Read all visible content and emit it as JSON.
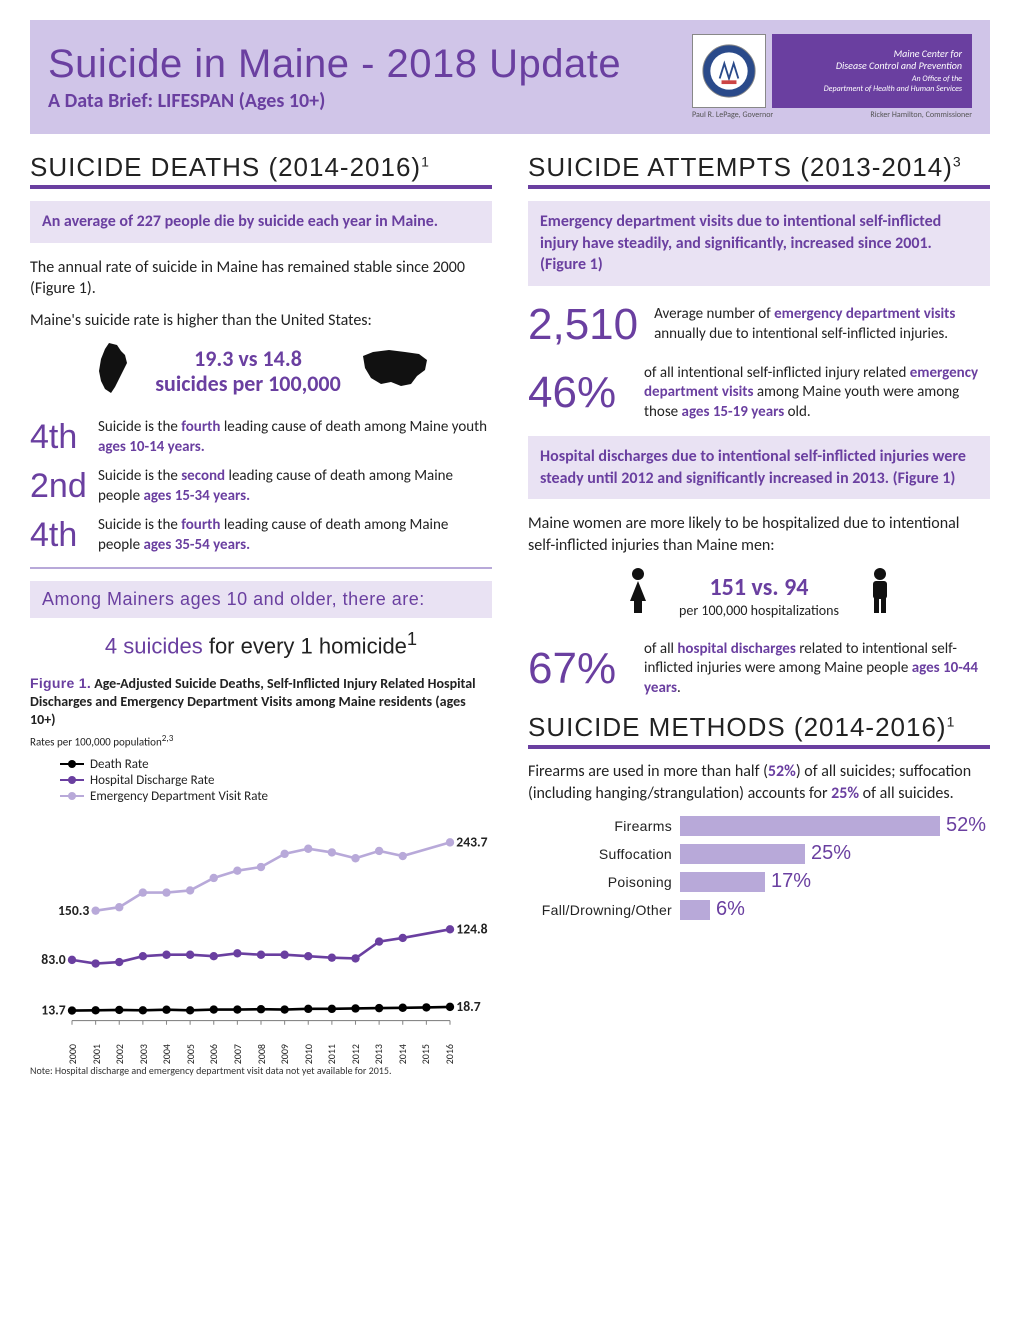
{
  "header": {
    "title": "Suicide in Maine - 2018 Update",
    "subtitle": "A Data Brief: LIFESPAN  (Ages 10+)",
    "org1": "Maine Center for",
    "org2": "Disease Control and Prevention",
    "org3": "An Office of the",
    "org4": "Department of Health and Human Services",
    "caption_left": "Paul R. LePage, Governor",
    "caption_right": "Ricker Hamilton, Commissioner"
  },
  "deaths": {
    "heading": "SUICIDE DEATHS (2014-2016)",
    "sup": "1",
    "callout": "An average of 227 people die by suicide each year in Maine.",
    "para1": "The annual rate of suicide in Maine has remained stable since 2000 (Figure 1).",
    "para2": "Maine's suicide rate is higher than the United States:",
    "rate_line1": "19.3 vs 14.8",
    "rate_line2": "suicides per 100,000",
    "ranks": [
      {
        "num": "4th",
        "text_a": "Suicide is the ",
        "bold1": "fourth",
        "text_b": " leading cause of death among Maine youth ",
        "bold2": "ages 10-14 years."
      },
      {
        "num": "2nd",
        "text_a": "Suicide is the ",
        "bold1": "second",
        "text_b": " leading cause of death among Maine people ",
        "bold2": "ages 15-34 years."
      },
      {
        "num": "4th",
        "text_a": "Suicide is the ",
        "bold1": "fourth",
        "text_b": " leading cause of death among Maine people ",
        "bold2": "ages 35-54 years."
      }
    ],
    "among": "Among Mainers ages 10 and older, there are:",
    "ratio_a": "4 suicides",
    "ratio_b": " for every ",
    "ratio_c": "1 homicide",
    "ratio_sup": "1"
  },
  "figure": {
    "label": "Figure 1.",
    "title": " Age-Adjusted Suicide Deaths, Self-Inflicted Injury Related Hospital Discharges and Emergency Department Visits among Maine residents (ages 10+)",
    "sub": "Rates per 100,000 population",
    "sub_sup": "2,3",
    "legend": [
      "Death Rate",
      "Hospital Discharge Rate",
      "Emergency Department Visit Rate"
    ],
    "years": [
      "2000",
      "2001",
      "2002",
      "2003",
      "2004",
      "2005",
      "2006",
      "2007",
      "2008",
      "2009",
      "2010",
      "2011",
      "2012",
      "2013",
      "2014",
      "2015",
      "2016"
    ],
    "series": {
      "death": {
        "color": "#000000",
        "values": [
          13.7,
          14,
          14.5,
          14,
          14.8,
          14,
          15,
          15,
          15.5,
          15,
          16,
          16,
          16.5,
          17,
          17.5,
          18,
          18.7
        ],
        "start_label": "13.7",
        "end_label": "18.7"
      },
      "discharge": {
        "color": "#6a3fa0",
        "values": [
          83.0,
          78,
          80,
          88,
          90,
          90,
          88,
          92,
          90,
          90,
          88,
          86,
          85,
          108,
          113,
          null,
          124.8
        ],
        "start_label": "83.0",
        "end_label": "124.8"
      },
      "ed": {
        "color": "#b8a9d9",
        "values": [
          null,
          150.3,
          155,
          175,
          175,
          178,
          195,
          205,
          210,
          228,
          235,
          230,
          222,
          232,
          225,
          null,
          243.7
        ],
        "start_label": "150.3",
        "end_label": "243.7"
      }
    },
    "y_max": 270,
    "note": "Note: Hospital discharge and emergency department visit data not yet available for 2015."
  },
  "attempts": {
    "heading": "SUICIDE ATTEMPTS (2013-2014)",
    "sup": "3",
    "callout1": "Emergency department visits due to intentional self-inflicted injury have steadily, and significantly, increased since 2001.  (Figure 1)",
    "stat1_num": "2,510",
    "stat1_a": "Average number of ",
    "stat1_b": "emergency department visits",
    "stat1_c": " annually due to intentional self-inflicted injuries.",
    "stat2_num": "46%",
    "stat2_a": "of all intentional self-inflicted injury related ",
    "stat2_b": "emergency department visits",
    "stat2_c": " among Maine youth were among those ",
    "stat2_d": "ages 15-19 years",
    "stat2_e": " old.",
    "callout2": "Hospital discharges due to intentional self-inflicted injuries were steady until 2012  and significantly increased in 2013.  (Figure 1)",
    "gender_intro": "Maine women are more likely to be hospitalized due to intentional self-inflicted injuries than Maine men:",
    "gender_nums": "151 vs. 94",
    "gender_sub": "per 100,000 hospitalizations",
    "stat3_num": "67%",
    "stat3_a": "of all ",
    "stat3_b": "hospital discharges",
    "stat3_c": " related to intentional self-inflicted injuries were among Maine people ",
    "stat3_d": "ages 10-44 years",
    "stat3_e": "."
  },
  "methods": {
    "heading": "SUICIDE METHODS (2014-2016)",
    "sup": "1",
    "intro_a": "Firearms are used in more than half (",
    "intro_b": "52%",
    "intro_c": ") of all suicides; suffocation (including hanging/strangulation) accounts for ",
    "intro_d": "25%",
    "intro_e": " of all suicides.",
    "bars": [
      {
        "label": "Firearms",
        "pct": 52,
        "pct_label": "52%"
      },
      {
        "label": "Suffocation",
        "pct": 25,
        "pct_label": "25%"
      },
      {
        "label": "Poisoning",
        "pct": 17,
        "pct_label": "17%"
      },
      {
        "label": "Fall/Drowning/Other",
        "pct": 6,
        "pct_label": "6%"
      }
    ],
    "bar_color": "#b8a9d9",
    "bar_max_width": 260
  }
}
